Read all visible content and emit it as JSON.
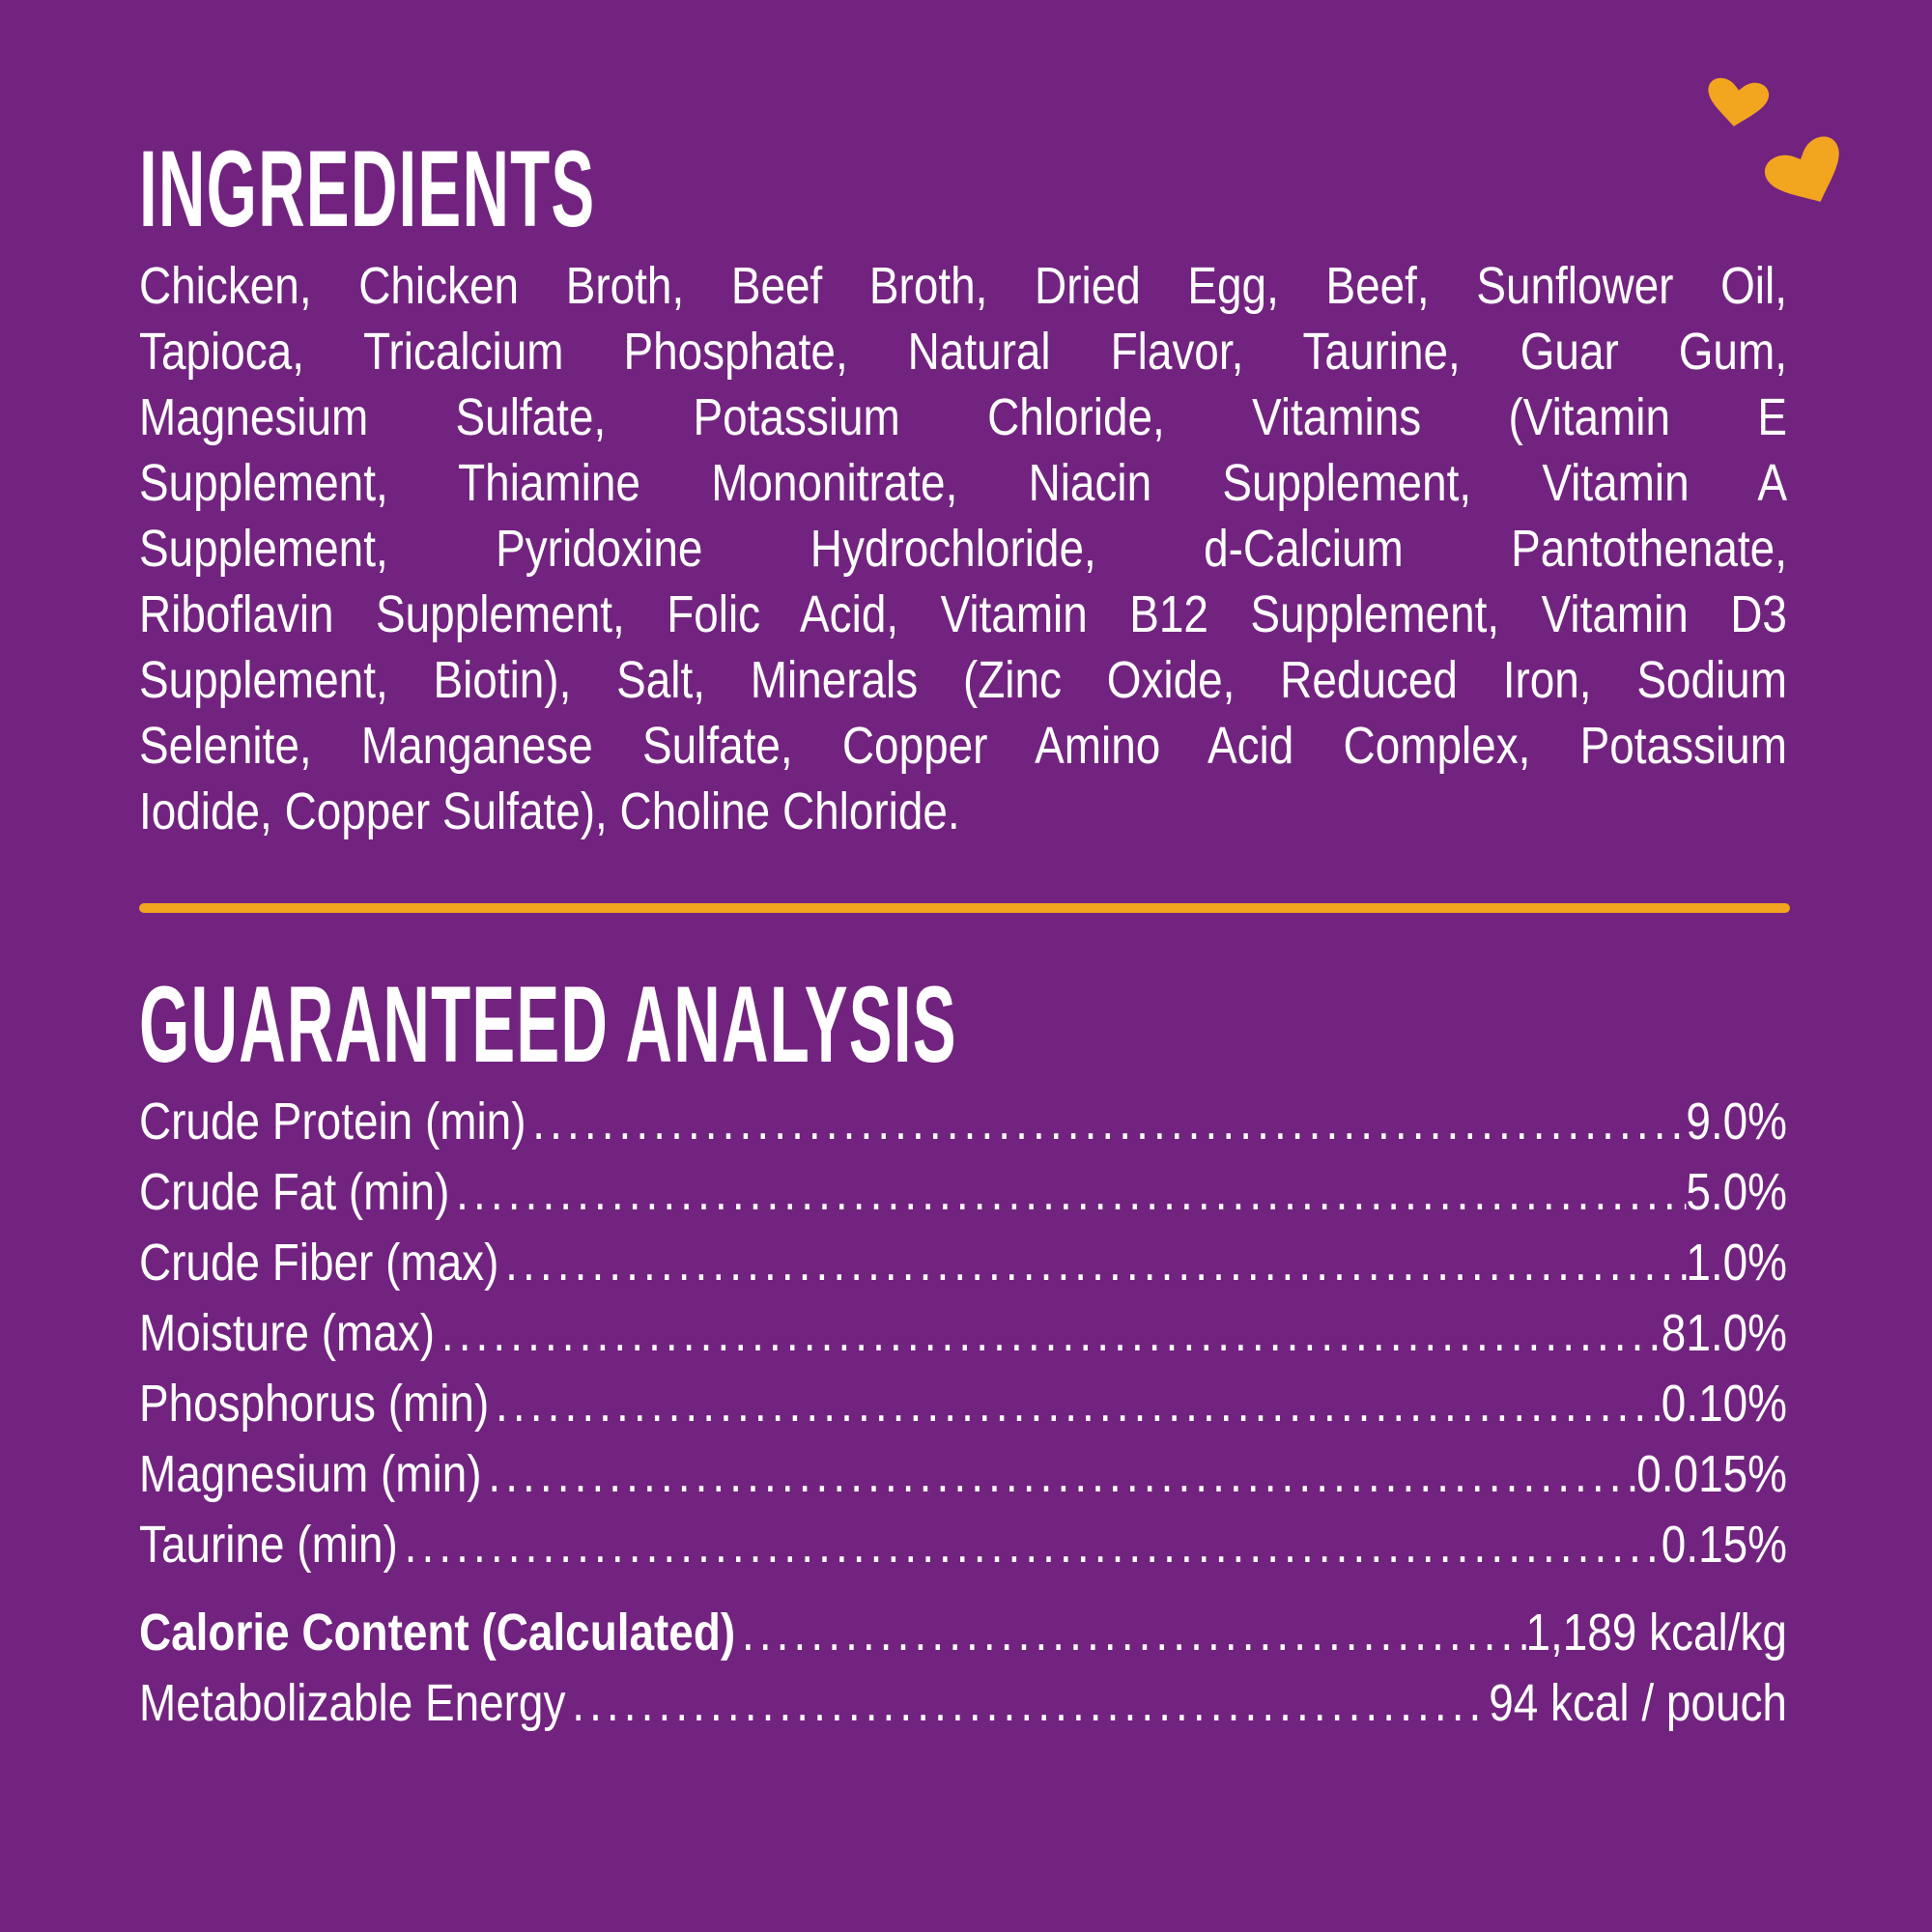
{
  "ingredients": {
    "title": "INGREDIENTS",
    "lines": [
      "Chicken, Chicken Broth, Beef Broth, Dried Egg, Beef, Sunflower Oil,",
      "Tapioca, Tricalcium Phosphate, Natural Flavor, Taurine, Guar Gum,",
      "Magnesium Sulfate, Potassium Chloride, Vitamins (Vitamin E",
      "Supplement, Thiamine Mononitrate, Niacin Supplement, Vitamin A",
      "Supplement, Pyridoxine Hydrochloride, d-Calcium Pantothenate,",
      "Riboflavin Supplement, Folic Acid, Vitamin B12 Supplement, Vitamin D3",
      "Supplement, Biotin), Salt, Minerals (Zinc Oxide, Reduced Iron, Sodium",
      "Selenite, Manganese Sulfate, Copper Amino Acid Complex, Potassium",
      "Iodide, Copper Sulfate), Choline Chloride."
    ]
  },
  "analysis": {
    "title": "GUARANTEED ANALYSIS",
    "rows": [
      {
        "label": "Crude Protein (min)",
        "value": "9.0%"
      },
      {
        "label": "Crude Fat (min)",
        "value": "5.0%"
      },
      {
        "label": "Crude Fiber (max)",
        "value": "1.0%"
      },
      {
        "label": "Moisture (max)",
        "value": "81.0%"
      },
      {
        "label": "Phosphorus (min)",
        "value": "0.10%"
      },
      {
        "label": "Magnesium (min)",
        "value": "0.015%"
      },
      {
        "label": "Taurine (min)",
        "value": "0.15%"
      }
    ],
    "calorie": {
      "label": "Calorie Content (Calculated)",
      "value": "1,189 kcal/kg"
    },
    "energy": {
      "label": "Metabolizable Energy",
      "value": "94 kcal / pouch"
    }
  },
  "colors": {
    "background": "#72237f",
    "accent": "#f2a51f",
    "text": "#ffffff"
  },
  "icons": [
    "heart-icon",
    "heart-icon"
  ]
}
